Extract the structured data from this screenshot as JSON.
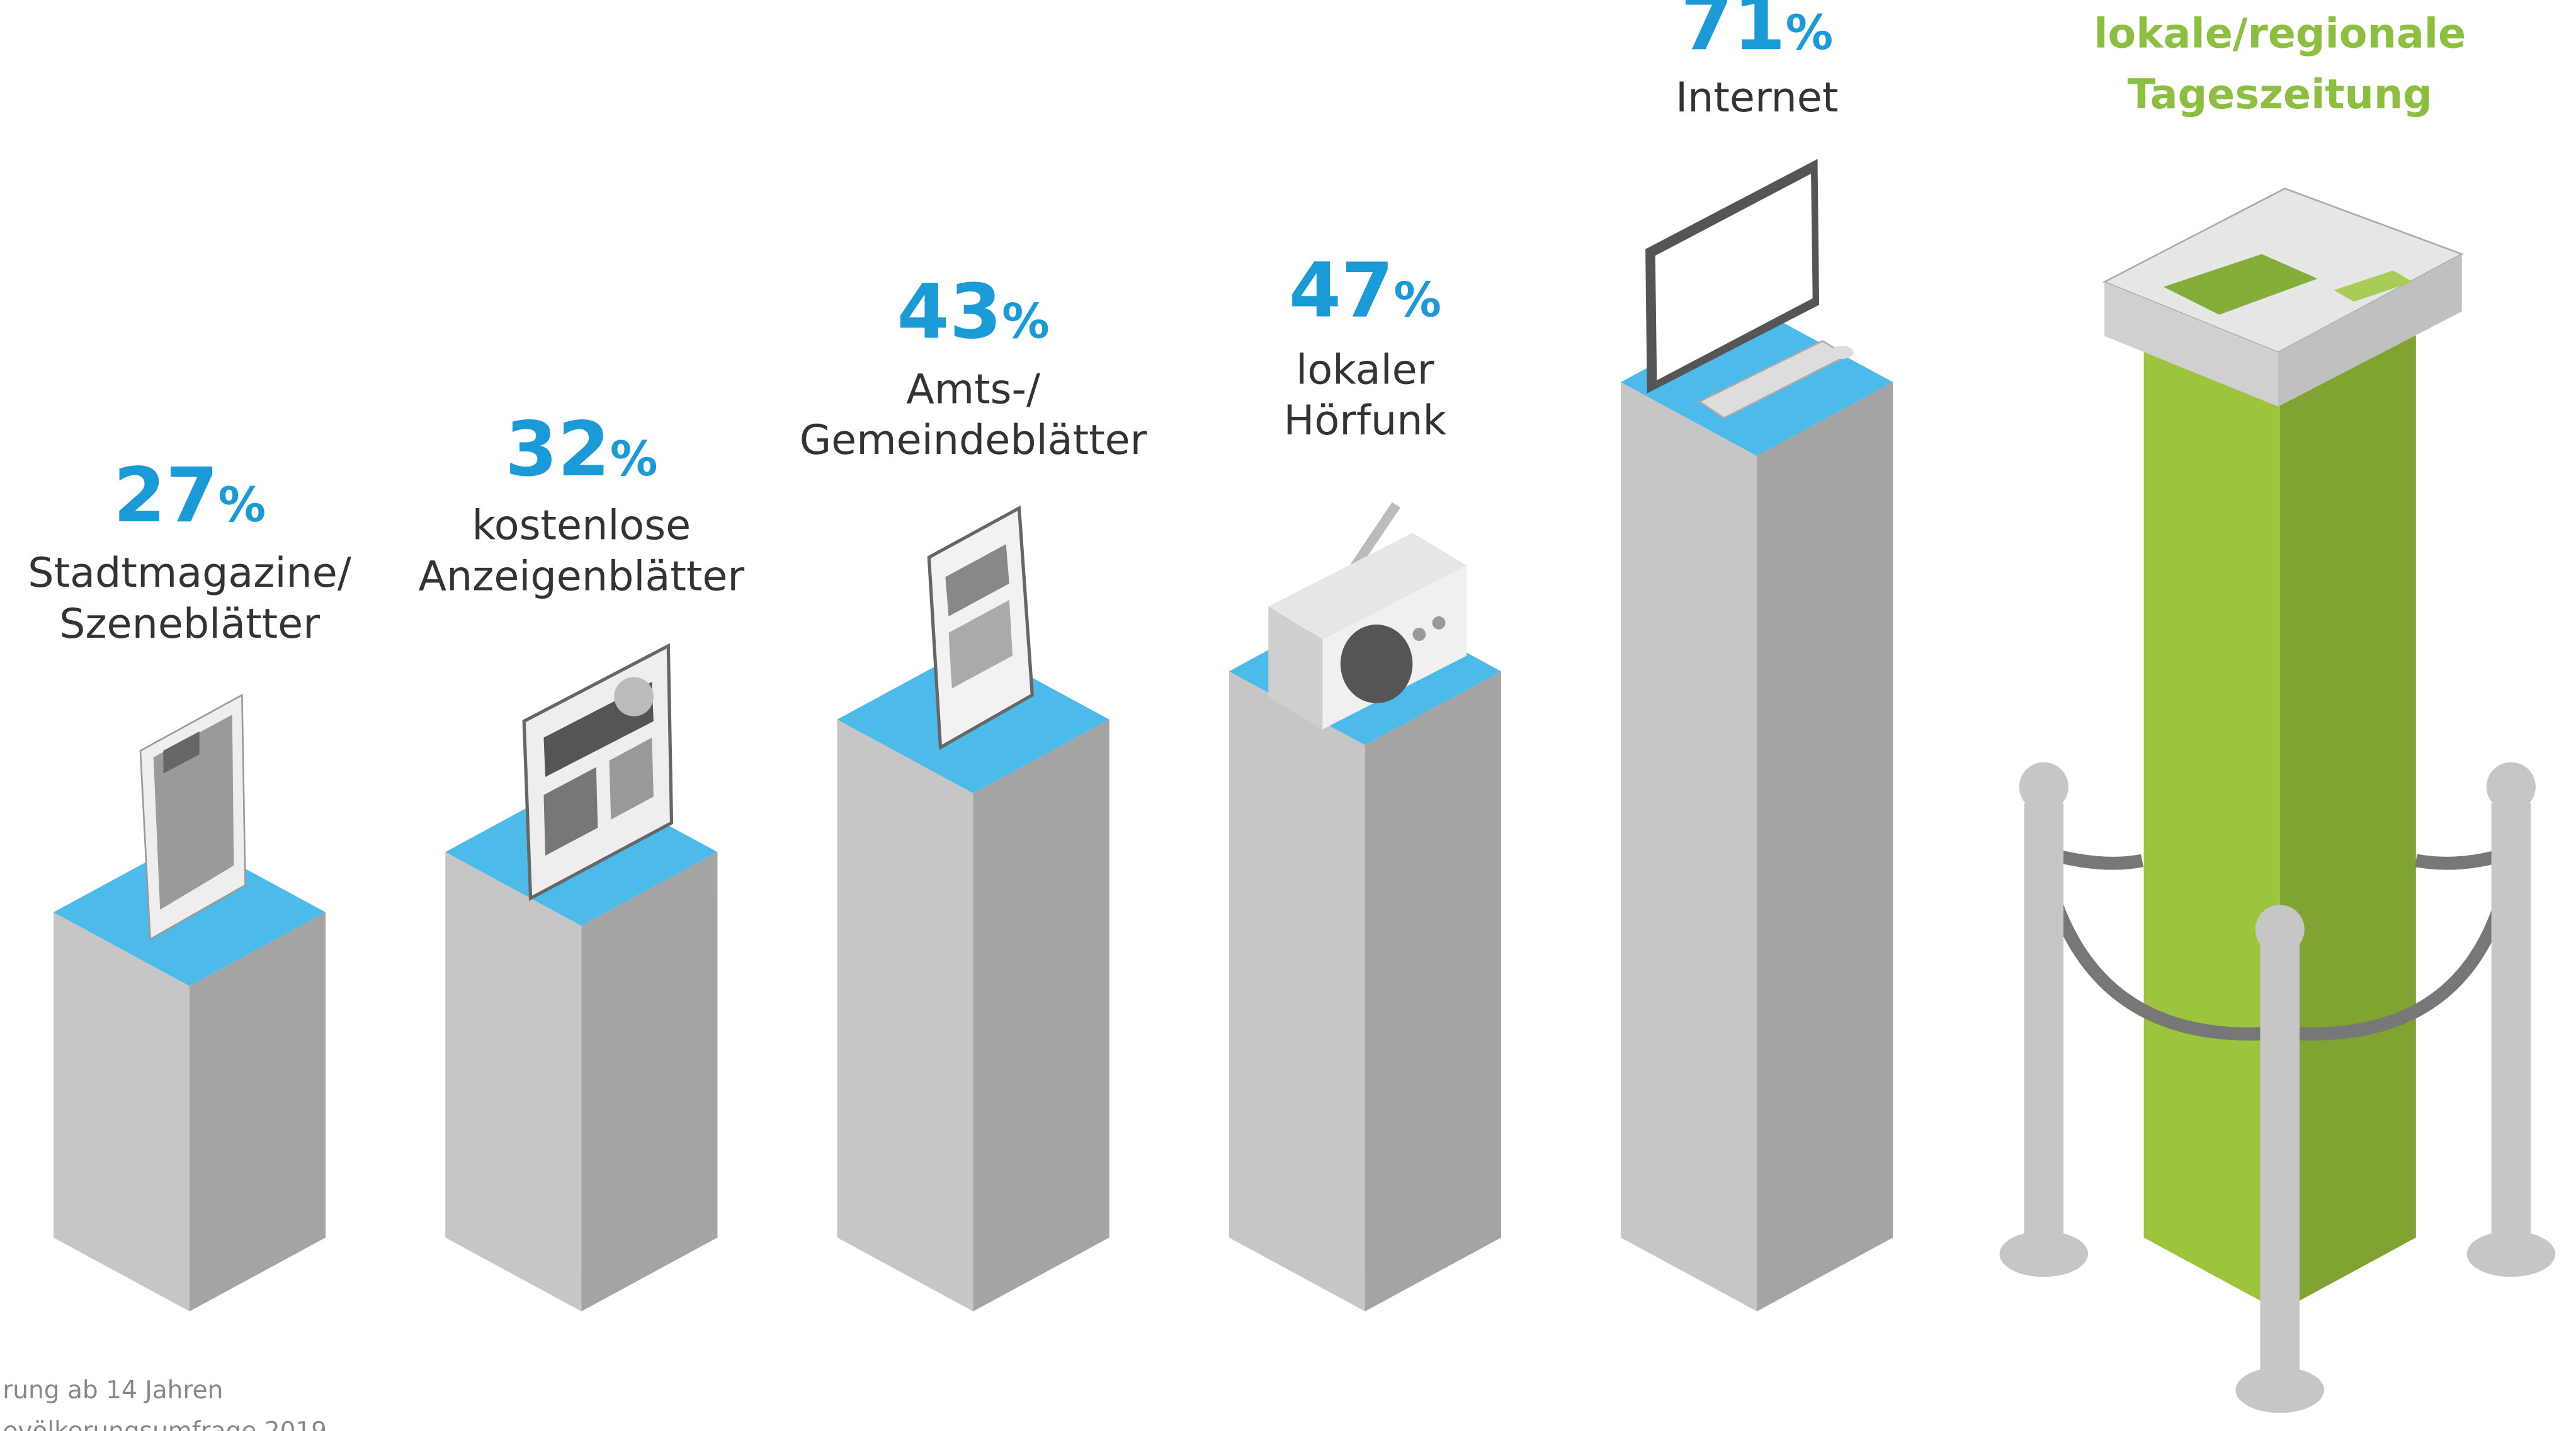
{
  "chart_data": {
    "type": "bar",
    "categories": [
      "Stadtmagazine/\nSzeneblätter",
      "kostenlose\nAnzeigenblätter",
      "Amts-/\nGemeindeblätter",
      "lokaler\nHörfunk",
      "Internet",
      "lokale/regionale\nTageszeitung"
    ],
    "values": [
      27,
      32,
      43,
      47,
      71,
      76
    ],
    "value_labels": [
      "27%",
      "32%",
      "43%",
      "47%",
      "71%",
      null
    ],
    "colors": [
      "#c6c6c6",
      "#c6c6c6",
      "#c6c6c6",
      "#c6c6c6",
      "#c6c6c6",
      "#9cc43c"
    ],
    "top_colors": [
      "#4dbbe9",
      "#4dbbe9",
      "#4dbbe9",
      "#4dbbe9",
      "#4dbbe9",
      "#9cc43c"
    ],
    "category_colors": [
      "#333333",
      "#333333",
      "#333333",
      "#333333",
      "#333333",
      "#8cbf3f"
    ],
    "label_color": "#1a9ad6",
    "notes": [
      "rung ab 14 Jahren",
      "evölkerungsumfrage 2019"
    ]
  }
}
